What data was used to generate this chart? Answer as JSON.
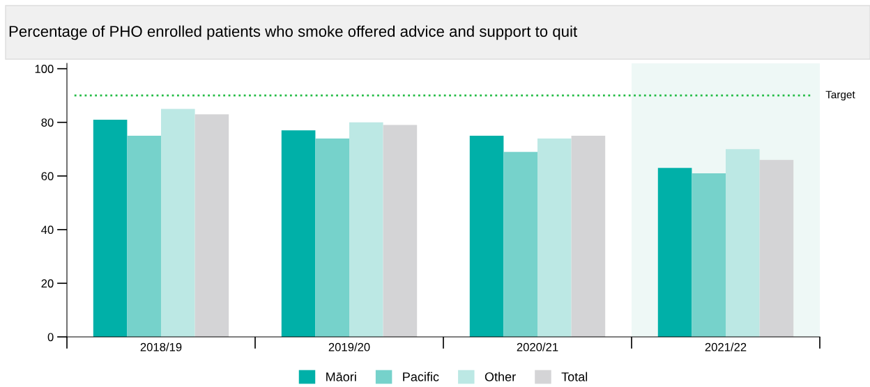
{
  "chart_data": {
    "type": "bar",
    "title": "Percentage of PHO enrolled patients who smoke offered advice and support to quit",
    "categories": [
      "2018/19",
      "2019/20",
      "2020/21",
      "2021/22"
    ],
    "series": [
      {
        "name": "Māori",
        "color": "#00b0a8",
        "values": [
          81,
          77,
          75,
          63
        ]
      },
      {
        "name": "Pacific",
        "color": "#76d2cb",
        "values": [
          75,
          74,
          69,
          61
        ]
      },
      {
        "name": "Other",
        "color": "#bce8e4",
        "values": [
          85,
          80,
          74,
          70
        ]
      },
      {
        "name": "Total",
        "color": "#d4d4d6",
        "values": [
          83,
          79,
          75,
          66
        ]
      }
    ],
    "ylim": [
      0,
      102
    ],
    "yticks": [
      0,
      20,
      40,
      60,
      80,
      100
    ],
    "ref_lines": [
      {
        "axis": "y",
        "value": 90,
        "label": "Target",
        "color": "#22bb44",
        "line_style": "dotted"
      }
    ],
    "bands": [
      {
        "axis": "x",
        "from": "2021/22",
        "to": "2021/22",
        "color": "#eef8f6"
      }
    ],
    "grid": false,
    "legend": "bottom"
  }
}
